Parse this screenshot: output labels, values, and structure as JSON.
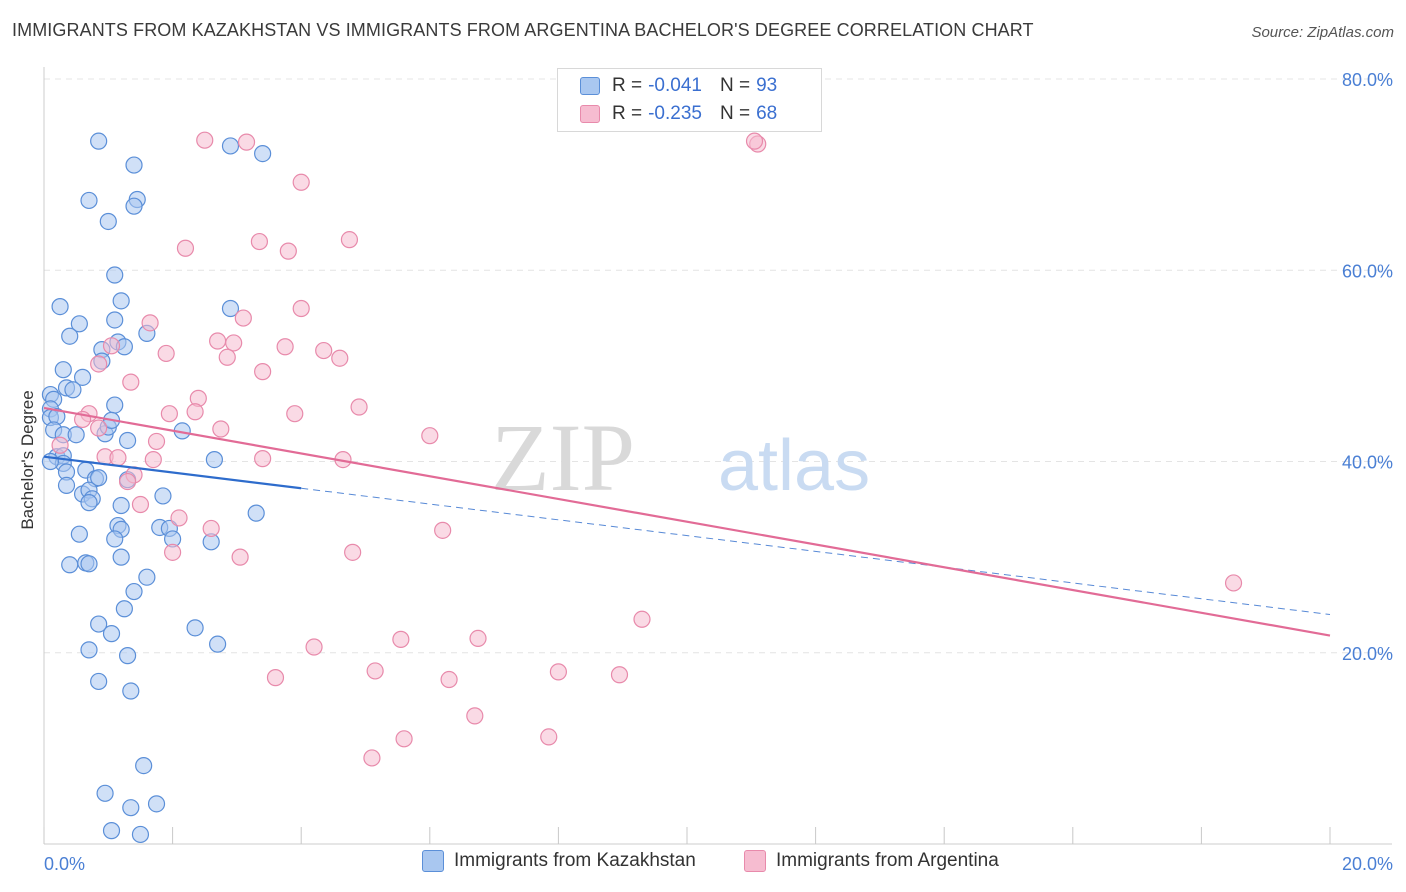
{
  "title": "IMMIGRANTS FROM KAZAKHSTAN VS IMMIGRANTS FROM ARGENTINA BACHELOR'S DEGREE CORRELATION CHART",
  "source": "Source: ZipAtlas.com",
  "watermark": {
    "zip": "ZIP",
    "atlas": "atlas"
  },
  "legend": {
    "rows": [
      {
        "r_label": "R =",
        "r_value": "-0.041",
        "n_label": "N =",
        "n_value": "93"
      },
      {
        "r_label": "R =",
        "r_value": "-0.235",
        "n_label": "N =",
        "n_value": "68"
      }
    ]
  },
  "bottom_legend": {
    "kazakhstan": "Immigrants from Kazakhstan",
    "argentina": "Immigrants from Argentina"
  },
  "colors": {
    "kazakhstan_fill": "#a9c7f0",
    "kazakhstan_stroke": "#5b8fd8",
    "kazakhstan_line": "#2e6ccc",
    "argentina_fill": "#f6bcd0",
    "argentina_stroke": "#e88aab",
    "argentina_line": "#e26b96",
    "tick_text": "#4a7fd4",
    "grid": "#e4e4e4"
  },
  "chart_data": {
    "type": "scatter",
    "title": "IMMIGRANTS FROM KAZAKHSTAN VS IMMIGRANTS FROM ARGENTINA BACHELOR'S DEGREE CORRELATION CHART",
    "xlabel": "",
    "ylabel": "Bachelor's Degree",
    "xlim": [
      0,
      20
    ],
    "ylim": [
      0,
      80
    ],
    "x_tick_labels": [
      "0.0%",
      "20.0%"
    ],
    "y_ticks": [
      20,
      40,
      60,
      80
    ],
    "y_tick_labels": [
      "20.0%",
      "40.0%",
      "60.0%",
      "80.0%"
    ],
    "grid": true,
    "legend_position": "top-center",
    "series": [
      {
        "name": "Immigrants from Kazakhstan",
        "R": -0.041,
        "N": 93,
        "trend": {
          "x": [
            0.0,
            4.0
          ],
          "y": [
            40.5,
            37.2
          ],
          "dashed_extension": {
            "x": [
              4.0,
              20.0
            ],
            "y": [
              37.2,
              24.0
            ]
          }
        },
        "points": [
          [
            0.85,
            73.5
          ],
          [
            1.4,
            71.0
          ],
          [
            2.9,
            73.0
          ],
          [
            3.4,
            72.2
          ],
          [
            0.7,
            67.3
          ],
          [
            1.45,
            67.4
          ],
          [
            1.4,
            66.7
          ],
          [
            1.0,
            65.1
          ],
          [
            1.1,
            59.5
          ],
          [
            0.25,
            56.2
          ],
          [
            1.2,
            56.8
          ],
          [
            2.9,
            56.0
          ],
          [
            0.55,
            54.4
          ],
          [
            1.1,
            54.8
          ],
          [
            0.4,
            53.1
          ],
          [
            1.6,
            53.4
          ],
          [
            1.15,
            52.5
          ],
          [
            0.9,
            51.7
          ],
          [
            1.25,
            52.0
          ],
          [
            0.9,
            50.5
          ],
          [
            0.3,
            49.6
          ],
          [
            0.6,
            48.8
          ],
          [
            0.35,
            47.7
          ],
          [
            0.45,
            47.5
          ],
          [
            0.1,
            47.0
          ],
          [
            0.15,
            46.5
          ],
          [
            0.1,
            45.5
          ],
          [
            0.1,
            44.6
          ],
          [
            0.2,
            44.7
          ],
          [
            1.1,
            45.9
          ],
          [
            0.15,
            43.3
          ],
          [
            0.3,
            42.8
          ],
          [
            0.5,
            42.8
          ],
          [
            0.95,
            42.9
          ],
          [
            1.0,
            43.6
          ],
          [
            1.05,
            44.3
          ],
          [
            2.15,
            43.2
          ],
          [
            1.3,
            42.2
          ],
          [
            0.2,
            40.5
          ],
          [
            0.3,
            40.6
          ],
          [
            0.3,
            39.8
          ],
          [
            0.1,
            40.0
          ],
          [
            0.35,
            38.9
          ],
          [
            0.65,
            39.1
          ],
          [
            0.8,
            38.2
          ],
          [
            0.85,
            38.3
          ],
          [
            1.3,
            38.1
          ],
          [
            2.65,
            40.2
          ],
          [
            0.35,
            37.5
          ],
          [
            0.6,
            36.6
          ],
          [
            0.7,
            37.0
          ],
          [
            0.75,
            36.1
          ],
          [
            1.2,
            35.4
          ],
          [
            1.85,
            36.4
          ],
          [
            0.7,
            35.7
          ],
          [
            1.15,
            33.3
          ],
          [
            1.8,
            33.1
          ],
          [
            1.95,
            33.0
          ],
          [
            1.2,
            32.9
          ],
          [
            1.1,
            31.9
          ],
          [
            0.55,
            32.4
          ],
          [
            2.0,
            31.9
          ],
          [
            2.6,
            31.6
          ],
          [
            3.3,
            34.6
          ],
          [
            1.2,
            30.0
          ],
          [
            0.4,
            29.2
          ],
          [
            0.65,
            29.4
          ],
          [
            0.7,
            29.3
          ],
          [
            1.6,
            27.9
          ],
          [
            1.4,
            26.4
          ],
          [
            1.25,
            24.6
          ],
          [
            0.85,
            23.0
          ],
          [
            1.05,
            22.0
          ],
          [
            2.35,
            22.6
          ],
          [
            0.7,
            20.3
          ],
          [
            1.3,
            19.7
          ],
          [
            2.7,
            20.9
          ],
          [
            0.85,
            17.0
          ],
          [
            1.35,
            16.0
          ],
          [
            1.55,
            8.2
          ],
          [
            0.95,
            5.3
          ],
          [
            1.35,
            3.8
          ],
          [
            1.75,
            4.2
          ],
          [
            1.05,
            1.4
          ],
          [
            1.5,
            1.0
          ]
        ]
      },
      {
        "name": "Immigrants from Argentina",
        "R": -0.235,
        "N": 68,
        "trend": {
          "x": [
            0.0,
            20.0
          ],
          "y": [
            45.6,
            21.8
          ]
        },
        "points": [
          [
            2.5,
            73.6
          ],
          [
            3.15,
            73.4
          ],
          [
            4.0,
            69.2
          ],
          [
            11.1,
            73.2
          ],
          [
            11.05,
            73.5
          ],
          [
            2.2,
            62.3
          ],
          [
            3.35,
            63.0
          ],
          [
            3.8,
            62.0
          ],
          [
            4.75,
            63.2
          ],
          [
            4.0,
            56.0
          ],
          [
            1.65,
            54.5
          ],
          [
            3.1,
            55.0
          ],
          [
            1.05,
            52.1
          ],
          [
            2.7,
            52.6
          ],
          [
            2.95,
            52.4
          ],
          [
            3.75,
            52.0
          ],
          [
            4.35,
            51.6
          ],
          [
            1.9,
            51.3
          ],
          [
            2.85,
            50.9
          ],
          [
            4.6,
            50.8
          ],
          [
            0.85,
            50.2
          ],
          [
            3.4,
            49.4
          ],
          [
            1.35,
            48.3
          ],
          [
            2.4,
            46.6
          ],
          [
            4.9,
            45.7
          ],
          [
            0.7,
            45.0
          ],
          [
            1.95,
            45.0
          ],
          [
            2.35,
            45.2
          ],
          [
            3.9,
            45.0
          ],
          [
            0.6,
            44.4
          ],
          [
            0.85,
            43.5
          ],
          [
            2.75,
            43.4
          ],
          [
            6.0,
            42.7
          ],
          [
            1.75,
            42.1
          ],
          [
            0.25,
            41.7
          ],
          [
            0.95,
            40.5
          ],
          [
            1.15,
            40.4
          ],
          [
            1.7,
            40.2
          ],
          [
            3.4,
            40.3
          ],
          [
            4.65,
            40.2
          ],
          [
            1.4,
            38.6
          ],
          [
            1.3,
            37.9
          ],
          [
            1.5,
            35.5
          ],
          [
            2.1,
            34.1
          ],
          [
            2.6,
            33.0
          ],
          [
            6.2,
            32.8
          ],
          [
            2.0,
            30.5
          ],
          [
            3.05,
            30.0
          ],
          [
            4.8,
            30.5
          ],
          [
            18.5,
            27.3
          ],
          [
            9.3,
            23.5
          ],
          [
            4.2,
            20.6
          ],
          [
            5.55,
            21.4
          ],
          [
            6.75,
            21.5
          ],
          [
            5.15,
            18.1
          ],
          [
            8.0,
            18.0
          ],
          [
            8.95,
            17.7
          ],
          [
            3.6,
            17.4
          ],
          [
            6.3,
            17.2
          ],
          [
            6.7,
            13.4
          ],
          [
            5.6,
            11.0
          ],
          [
            7.85,
            11.2
          ],
          [
            5.1,
            9.0
          ]
        ]
      }
    ]
  }
}
